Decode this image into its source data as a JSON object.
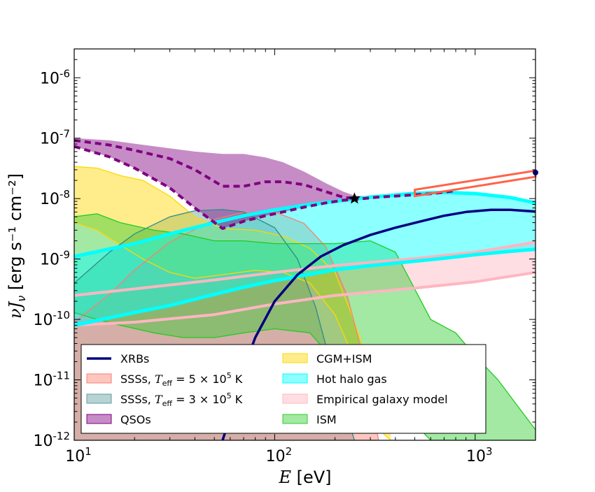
{
  "chart_data": {
    "type": "area",
    "title": "",
    "xlabel_var": "E",
    "xlabel_unit": "[eV]",
    "ylabel_var": "νJ",
    "ylabel_sub": "ν",
    "ylabel_unit": "[erg s⁻¹ cm⁻²]",
    "xscale": "log",
    "yscale": "log",
    "xlim": [
      10,
      2000
    ],
    "ylim": [
      1e-12,
      3e-06
    ],
    "x_ticks": [
      {
        "value": 10,
        "label": "10",
        "exp": "1"
      },
      {
        "value": 100,
        "label": "10",
        "exp": "2"
      },
      {
        "value": 1000,
        "label": "10",
        "exp": "3"
      }
    ],
    "y_ticks": [
      {
        "value": 1e-12,
        "label": "10",
        "exp": "-12"
      },
      {
        "value": 1e-11,
        "label": "10",
        "exp": "-11"
      },
      {
        "value": 1e-10,
        "label": "10",
        "exp": "-10"
      },
      {
        "value": 1e-09,
        "label": "10",
        "exp": "-9"
      },
      {
        "value": 1e-08,
        "label": "10",
        "exp": "-8"
      },
      {
        "value": 1e-07,
        "label": "10",
        "exp": "-7"
      },
      {
        "value": 1e-06,
        "label": "10",
        "exp": "-6"
      }
    ],
    "legend": [
      {
        "key": "xrb",
        "kind": "line",
        "label": "XRBs",
        "color": "#000080"
      },
      {
        "key": "sss5",
        "kind": "patch",
        "label": "SSSs, ",
        "math": "T",
        "math_sub": "eff",
        "math_rest": " = 5 × 10",
        "math_exp": "5",
        "unit": " K",
        "color": "#FA8072"
      },
      {
        "key": "sss3",
        "kind": "patch",
        "label": "SSSs, ",
        "math": "T",
        "math_sub": "eff",
        "math_rest": " = 3 × 10",
        "math_exp": "5",
        "unit": " K",
        "color": "#5F9EA0"
      },
      {
        "key": "qso",
        "kind": "patch",
        "label": "QSOs",
        "color": "#800080"
      },
      {
        "key": "cgm",
        "kind": "patch",
        "label": "CGM+ISM",
        "color": "#FFD700"
      },
      {
        "key": "halo",
        "kind": "patch",
        "label": "Hot halo gas",
        "color": "#00FFFF"
      },
      {
        "key": "emp",
        "kind": "patch",
        "label": "Empirical galaxy model",
        "color": "#FFB6C1"
      },
      {
        "key": "ism",
        "kind": "patch",
        "label": "ISM",
        "color": "#32CD32"
      }
    ],
    "series": [
      {
        "key": "emp_band",
        "name": "Empirical galaxy model",
        "color": "#FFB6C1",
        "x": [
          10,
          20,
          50,
          100,
          200,
          500,
          1000,
          2000
        ],
        "lower": [
          8e-11,
          9e-11,
          1.2e-10,
          1.8e-10,
          2.5e-10,
          3.3e-10,
          4.2e-10,
          6e-10
        ],
        "upper": [
          2.5e-10,
          3.2e-10,
          4.5e-10,
          6e-10,
          7.8e-10,
          1.02e-09,
          1.3e-09,
          1.9e-09
        ]
      },
      {
        "key": "sss3_band",
        "name": "SSSs 3e5 K",
        "color": "#5F9EA0",
        "x": [
          10,
          15,
          20,
          30,
          40,
          55,
          70,
          100,
          130,
          160,
          200,
          250
        ],
        "lower": [
          1e-12,
          1e-12,
          1e-12,
          1e-12,
          1e-12,
          1e-12,
          1e-12,
          1e-12,
          1e-12,
          1e-12,
          1e-12,
          1e-12
        ],
        "upper": [
          4e-10,
          1.3e-09,
          2.6e-09,
          5e-09,
          6.3e-09,
          6.6e-09,
          6e-09,
          3.3e-09,
          1e-09,
          1.6e-10,
          1e-11,
          1e-12
        ]
      },
      {
        "key": "sss5_band",
        "name": "SSSs 5e5 K",
        "color": "#FA8072",
        "x": [
          10,
          15,
          20,
          30,
          50,
          70,
          100,
          140,
          180,
          230,
          280,
          330
        ],
        "lower": [
          1e-12,
          1e-12,
          1e-12,
          1e-12,
          1e-12,
          1e-12,
          1e-12,
          1e-12,
          1e-12,
          1e-12,
          1e-12,
          1e-12
        ],
        "upper": [
          9e-11,
          2.6e-10,
          6.6e-10,
          1.9e-09,
          4.5e-09,
          5.9e-09,
          6e-09,
          3.9e-09,
          1.6e-09,
          2.5e-10,
          2e-11,
          1e-12
        ]
      },
      {
        "key": "cgm_band",
        "name": "CGM+ISM",
        "color": "#FFD700",
        "x": [
          10,
          13,
          17,
          22,
          30,
          40,
          55,
          80,
          110,
          150,
          200,
          240,
          280,
          330,
          380
        ],
        "lower": [
          4e-09,
          3e-09,
          1.7e-09,
          1e-09,
          6e-10,
          4.8e-10,
          5.5e-10,
          6.5e-10,
          6e-10,
          4e-10,
          1.2e-10,
          3e-11,
          8e-12,
          1.5e-12,
          1e-12
        ],
        "upper": [
          3.4e-08,
          3.2e-08,
          2.4e-08,
          2e-08,
          1.1e-08,
          5e-09,
          3.2e-09,
          3e-09,
          2.4e-09,
          1.5e-09,
          6e-10,
          1.3e-10,
          3e-11,
          1e-11,
          1.6e-12
        ]
      },
      {
        "key": "ism_band",
        "name": "ISM",
        "color": "#32CD32",
        "x": [
          10,
          13,
          17,
          25,
          35,
          50,
          70,
          100,
          150,
          200,
          300,
          400,
          600,
          800,
          1000,
          1300,
          1600,
          2000
        ],
        "lower": [
          1.3e-10,
          1e-10,
          8e-11,
          6e-11,
          5e-11,
          5e-11,
          6e-11,
          7e-11,
          6e-11,
          2e-11,
          1e-11,
          4e-12,
          1e-12,
          1e-12,
          1e-12,
          1e-12,
          1e-12,
          1e-12
        ],
        "upper": [
          5e-09,
          5.6e-09,
          4e-09,
          3e-09,
          2.6e-09,
          2e-09,
          2e-09,
          1.8e-09,
          1.8e-09,
          1.8e-09,
          2e-09,
          1.3e-09,
          1e-10,
          6e-11,
          2.5e-11,
          1e-11,
          4e-12,
          1.5e-12
        ]
      },
      {
        "key": "halo_band",
        "name": "Hot halo gas",
        "color": "#00FFFF",
        "x": [
          10,
          20,
          30,
          50,
          70,
          100,
          150,
          200,
          300,
          500,
          700,
          1000,
          1500,
          2000
        ],
        "lower": [
          8e-11,
          1.3e-10,
          1.7e-10,
          2.6e-10,
          3.4e-10,
          4.4e-10,
          5.6e-10,
          6.6e-10,
          7.8e-10,
          9.2e-10,
          1.03e-09,
          1.18e-09,
          1.34e-09,
          1.45e-09
        ],
        "upper": [
          1.1e-09,
          1.8e-09,
          2.6e-09,
          4e-09,
          5.2e-09,
          6.5e-09,
          8e-09,
          9e-09,
          1.06e-08,
          1.22e-08,
          1.27e-08,
          1.21e-08,
          1.04e-08,
          8.5e-09
        ]
      },
      {
        "key": "qso_band",
        "name": "QSOs",
        "color": "#800080",
        "x": [
          10,
          15,
          20,
          30,
          40,
          55,
          70,
          90,
          110,
          140,
          180,
          220,
          250,
          280,
          330,
          400,
          600,
          800
        ],
        "lower": [
          7.3e-08,
          4.9e-08,
          3.2e-08,
          1.5e-08,
          7e-09,
          3.2e-09,
          4.2e-09,
          5.2e-09,
          6e-09,
          7.2e-09,
          8.5e-09,
          9.4e-09,
          9.8e-09,
          1.02e-08,
          1.06e-08,
          1.1e-08,
          1.2e-08,
          1.35e-08
        ],
        "upper": [
          1e-07,
          9.2e-08,
          8.1e-08,
          6.8e-08,
          6e-08,
          5.5e-08,
          5.5e-08,
          4.8e-08,
          4e-08,
          2.8e-08,
          1.8e-08,
          1.3e-08,
          1.12e-08,
          1.1e-08,
          1.1e-08,
          1.12e-08,
          1.22e-08,
          1.35e-08
        ]
      }
    ],
    "band_outlines": [
      {
        "key": "cgm_outline",
        "color": "#FFD700",
        "x": [
          10,
          13,
          17,
          22,
          30,
          40,
          55,
          80,
          110,
          150,
          200,
          240,
          280,
          330,
          380
        ],
        "top": [
          3.4e-08,
          3.2e-08,
          2.4e-08,
          2e-08,
          1.1e-08,
          5e-09,
          3.2e-09,
          3e-09,
          2.4e-09,
          1.5e-09,
          6e-10,
          1.3e-10,
          3e-11,
          1e-11,
          1.6e-12
        ],
        "bottom": [
          4e-09,
          3e-09,
          1.7e-09,
          1e-09,
          6e-10,
          4.8e-10,
          5.5e-10,
          6.5e-10,
          6e-10,
          4e-10,
          1.2e-10,
          3e-11,
          8e-12,
          1.5e-12,
          1e-12
        ]
      },
      {
        "key": "sss5_outline",
        "color": "#FA8072",
        "x": [
          10,
          15,
          20,
          30,
          50,
          70,
          100,
          140,
          180,
          230,
          280,
          330
        ],
        "top": [
          9e-11,
          2.6e-10,
          6.6e-10,
          1.9e-09,
          4.5e-09,
          5.9e-09,
          6e-09,
          3.9e-09,
          1.6e-09,
          2.5e-10,
          2e-11,
          1e-12
        ]
      },
      {
        "key": "sss3_outline",
        "color": "#2E8B8B",
        "x": [
          10,
          15,
          20,
          30,
          40,
          55,
          70,
          100,
          130,
          160,
          200,
          250
        ],
        "top": [
          4e-10,
          1.3e-09,
          2.6e-09,
          5e-09,
          6.3e-09,
          6.6e-09,
          6e-09,
          3.3e-09,
          1e-09,
          1.6e-10,
          1e-11,
          1e-12
        ]
      },
      {
        "key": "ism_outline",
        "color": "#22CC22",
        "x": [
          10,
          13,
          17,
          25,
          35,
          50,
          70,
          100,
          150,
          200,
          300,
          400,
          600,
          800,
          1000,
          1300,
          1600,
          2000
        ],
        "top": [
          5e-09,
          5.6e-09,
          4e-09,
          3e-09,
          2.6e-09,
          2e-09,
          2e-09,
          1.8e-09,
          1.8e-09,
          1.8e-09,
          2e-09,
          1.3e-09,
          1e-10,
          6e-11,
          2.5e-11,
          1e-11,
          4e-12,
          1.5e-12
        ],
        "bottom": [
          1.3e-10,
          1e-10,
          8e-11,
          6e-11,
          5e-11,
          5e-11,
          6e-11,
          7e-11,
          6e-11,
          2e-11,
          1e-11,
          4e-12,
          1e-12,
          1e-12,
          1e-12,
          1e-12,
          1e-12,
          1e-12
        ]
      }
    ],
    "lines": [
      {
        "key": "emp_lower_line",
        "color": "#FFB6C1",
        "width": 4,
        "dash": "",
        "x": [
          10,
          20,
          50,
          100,
          200,
          500,
          1000,
          2000
        ],
        "y": [
          8e-11,
          9e-11,
          1.2e-10,
          1.8e-10,
          2.5e-10,
          3.3e-10,
          4.2e-10,
          6e-10
        ]
      },
      {
        "key": "emp_upper_line",
        "color": "#FFB6C1",
        "width": 4,
        "dash": "",
        "x": [
          10,
          20,
          50,
          100,
          200,
          500,
          1000,
          2000
        ],
        "y": [
          2.5e-10,
          3.2e-10,
          4.5e-10,
          6e-10,
          7.8e-10,
          1.02e-09,
          1.3e-09,
          1.9e-09
        ]
      },
      {
        "key": "halo_lower_line",
        "color": "#00FFFF",
        "width": 5,
        "dash": "",
        "x": [
          10,
          20,
          30,
          50,
          70,
          100,
          150,
          200,
          300,
          500,
          700,
          1000,
          1500,
          2000
        ],
        "y": [
          8e-11,
          1.3e-10,
          1.7e-10,
          2.6e-10,
          3.4e-10,
          4.4e-10,
          5.6e-10,
          6.6e-10,
          7.8e-10,
          9.2e-10,
          1.03e-09,
          1.18e-09,
          1.34e-09,
          1.45e-09
        ]
      },
      {
        "key": "halo_upper_line",
        "color": "#00FFFF",
        "width": 5,
        "dash": "",
        "x": [
          10,
          20,
          30,
          50,
          70,
          100,
          150,
          200,
          300,
          500,
          700,
          1000,
          1500,
          2000
        ],
        "y": [
          1.1e-09,
          1.8e-09,
          2.6e-09,
          4e-09,
          5.2e-09,
          6.5e-09,
          8e-09,
          9e-09,
          1.06e-08,
          1.22e-08,
          1.27e-08,
          1.21e-08,
          1.04e-08,
          8.5e-09
        ]
      },
      {
        "key": "xrb_line",
        "color": "#000080",
        "width": 3.5,
        "dash": "",
        "x": [
          55,
          60,
          70,
          80,
          100,
          130,
          170,
          220,
          300,
          400,
          550,
          700,
          900,
          1200,
          1500,
          2000
        ],
        "y": [
          1e-12,
          2.5e-12,
          1.5e-11,
          5e-11,
          2e-10,
          5.5e-10,
          1.1e-09,
          1.7e-09,
          2.5e-09,
          3.3e-09,
          4.3e-09,
          5.2e-09,
          6e-09,
          6.5e-09,
          6.5e-09,
          6.1e-09
        ]
      },
      {
        "key": "qso_upper_dash",
        "color": "#800080",
        "width": 4,
        "dash": "9,6",
        "x": [
          10,
          15,
          20,
          30,
          40,
          55,
          70,
          90,
          110,
          140,
          180,
          220,
          260
        ],
        "y": [
          9.2e-08,
          7.7e-08,
          6.3e-08,
          4.6e-08,
          3e-08,
          1.6e-08,
          1.6e-08,
          1.9e-08,
          1.9e-08,
          1.7e-08,
          1.3e-08,
          1.05e-08,
          9.8e-09
        ]
      },
      {
        "key": "qso_lower_dash",
        "color": "#800080",
        "width": 4,
        "dash": "9,6",
        "x": [
          10,
          15,
          20,
          30,
          40,
          55,
          70,
          90,
          110,
          140,
          180,
          220,
          260,
          330,
          400,
          600,
          800
        ],
        "y": [
          7.3e-08,
          4.9e-08,
          3.2e-08,
          1.5e-08,
          7e-09,
          3.2e-09,
          4.2e-09,
          5.2e-09,
          6e-09,
          7.2e-09,
          8.5e-09,
          9.4e-09,
          9.8e-09,
          1.06e-08,
          1.1e-08,
          1.2e-08,
          1.35e-08
        ]
      }
    ],
    "observations": [
      {
        "key": "obs_wedge",
        "kind": "wedge",
        "color": "#FF6347",
        "x": [
          500,
          2000
        ],
        "lower": [
          1.1e-08,
          2.3e-08
        ],
        "upper": [
          1.4e-08,
          2.9e-08
        ]
      },
      {
        "key": "obs_star",
        "kind": "star",
        "color": "#000000",
        "x": 250,
        "y": 1e-08
      },
      {
        "key": "obs_dot",
        "kind": "dot",
        "color": "#000080",
        "x": 2000,
        "y": 2.7e-08
      }
    ]
  }
}
